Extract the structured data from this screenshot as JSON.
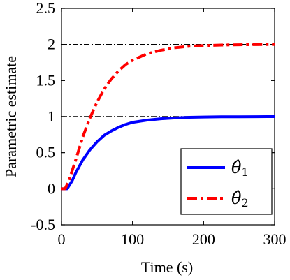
{
  "chart_data": {
    "type": "line",
    "xlabel": "Time (s)",
    "ylabel": "Parametric estimate",
    "xlim": [
      0,
      300
    ],
    "ylim": [
      -0.5,
      2.5
    ],
    "xticks": [
      0,
      100,
      200,
      300
    ],
    "xtick_labels": [
      "0",
      "100",
      "200",
      "300"
    ],
    "yticks": [
      -0.5,
      0,
      0.5,
      1,
      1.5,
      2,
      2.5
    ],
    "ytick_labels": [
      "-0.5",
      "0",
      "0.5",
      "1",
      "1.5",
      "2",
      "2.5"
    ],
    "grid": false,
    "legend_position": "bottom-right",
    "reference_lines": [
      {
        "y": 1,
        "style": "dash-dot",
        "color": "#000000"
      },
      {
        "y": 2,
        "style": "dash-dot",
        "color": "#000000"
      }
    ],
    "series": [
      {
        "name": "θ̂1",
        "legend_symbol": "θ̂",
        "legend_subscript": "1",
        "color": "#0000ff",
        "style": "solid",
        "x": [
          0,
          5,
          8,
          15,
          20,
          30,
          40,
          50,
          60,
          70,
          80,
          90,
          100,
          120,
          140,
          160,
          180,
          200,
          225,
          250,
          275,
          300
        ],
        "y": [
          0,
          0,
          0,
          0.11,
          0.22,
          0.4,
          0.54,
          0.65,
          0.74,
          0.8,
          0.85,
          0.89,
          0.92,
          0.95,
          0.97,
          0.982,
          0.99,
          0.994,
          0.997,
          0.998,
          0.999,
          1.0
        ]
      },
      {
        "name": "θ̂2",
        "legend_symbol": "θ̂",
        "legend_subscript": "2",
        "color": "#ff0000",
        "style": "dash-dot",
        "x": [
          0,
          5,
          10,
          20,
          30,
          40,
          50,
          60,
          70,
          80,
          90,
          100,
          120,
          140,
          160,
          180,
          200,
          225,
          250,
          275,
          300
        ],
        "y": [
          0,
          0,
          0.1,
          0.4,
          0.72,
          0.98,
          1.2,
          1.38,
          1.52,
          1.63,
          1.72,
          1.78,
          1.87,
          1.92,
          1.955,
          1.975,
          1.985,
          1.992,
          1.996,
          1.998,
          2.0
        ]
      }
    ]
  }
}
